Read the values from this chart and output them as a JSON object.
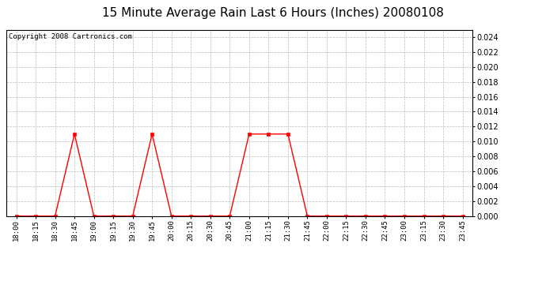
{
  "title": "15 Minute Average Rain Last 6 Hours (Inches) 20080108",
  "copyright": "Copyright 2008 Cartronics.com",
  "time_labels": [
    "18:00",
    "18:15",
    "18:30",
    "18:45",
    "19:00",
    "19:15",
    "19:30",
    "19:45",
    "20:00",
    "20:15",
    "20:30",
    "20:45",
    "21:00",
    "21:15",
    "21:30",
    "21:45",
    "22:00",
    "22:15",
    "22:30",
    "22:45",
    "23:00",
    "23:15",
    "23:30",
    "23:45"
  ],
  "values": [
    0.0,
    0.0,
    0.0,
    0.011,
    0.0,
    0.0,
    0.0,
    0.011,
    0.0,
    0.0,
    0.0,
    0.0,
    0.011,
    0.011,
    0.011,
    0.0,
    0.0,
    0.0,
    0.0,
    0.0,
    0.0,
    0.0,
    0.0,
    0.0
  ],
  "ylim": [
    0.0,
    0.025
  ],
  "yticks": [
    0.0,
    0.002,
    0.004,
    0.006,
    0.008,
    0.01,
    0.012,
    0.014,
    0.016,
    0.018,
    0.02,
    0.022,
    0.024
  ],
  "line_color": "red",
  "marker": "s",
  "marker_size": 2.5,
  "bg_color": "white",
  "grid_color": "#bbbbbb",
  "title_fontsize": 11,
  "copyright_fontsize": 6.5
}
